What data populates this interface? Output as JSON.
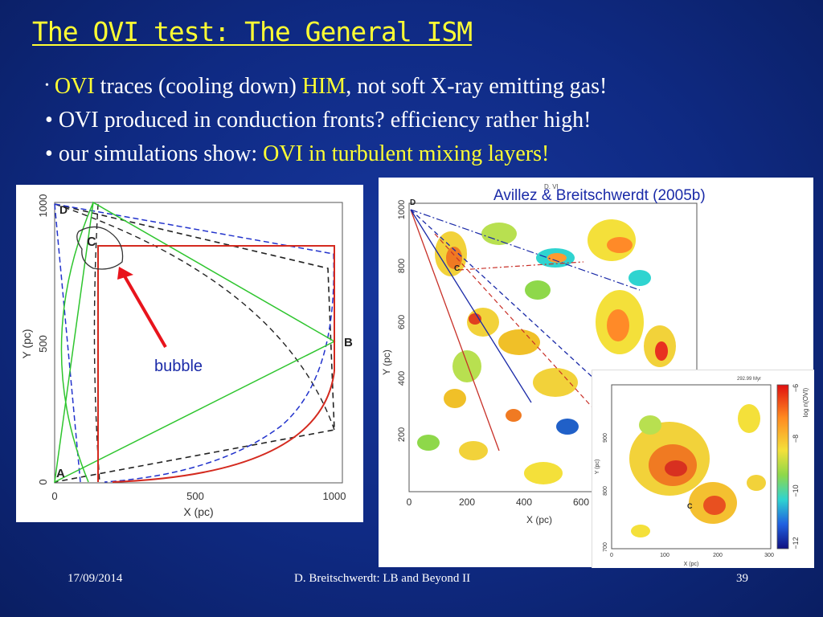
{
  "slide": {
    "title": "The OVI test: The General ISM",
    "bullets": [
      {
        "p1": "OVI",
        "p2": " traces (cooling down) ",
        "p3": "HIM",
        "p4": ", not soft X-ray emitting gas!"
      },
      {
        "p1": "OVI produced in conduction fronts? efficiency rather high!"
      },
      {
        "p1": "our simulations show: ",
        "p2": "OVI in turbulent mixing layers!"
      }
    ]
  },
  "left_figure": {
    "xlabel": "X (pc)",
    "ylabel": "Y (pc)",
    "xticks": [
      "0",
      "500",
      "1000"
    ],
    "yticks": [
      "0",
      "500",
      "1000"
    ],
    "point_labels": {
      "a": "A",
      "b": "B",
      "c": "C",
      "d": "D"
    },
    "annotation": "bubble",
    "colors": {
      "red": "#d42a1f",
      "green": "#2ec52e",
      "blue_dashed": "#2233cc",
      "black_dashed": "#222222",
      "annotation": "#1a2aa8",
      "arrow": "#e8141c"
    }
  },
  "right_figure": {
    "citation": "Avillez & Breitschwerdt (2005b)",
    "top_label": "D. VI",
    "xlabel": "X (pc)",
    "ylabel": "Y (pc)",
    "xticks": [
      "0",
      "200",
      "400",
      "600"
    ],
    "yticks": [
      "200",
      "400",
      "600",
      "800",
      "1000"
    ],
    "point_labels": {
      "c": "C",
      "d": "D"
    }
  },
  "inset_figure": {
    "time_label": "292.99 Myr",
    "xlabel": "X (pc)",
    "ylabel": "Y (pc)",
    "xticks": [
      "0",
      "100",
      "200",
      "300"
    ],
    "yticks": [
      "700",
      "800",
      "900"
    ],
    "point_labels": {
      "c": "C"
    },
    "colorbar_label": "log n(OVI)",
    "colorbar_ticks": [
      "−6",
      "−8",
      "−10",
      "−12"
    ]
  },
  "footer": {
    "date": "17/09/2014",
    "center": "D. Breitschwerdt: LB and Beyond II",
    "page": "39"
  }
}
